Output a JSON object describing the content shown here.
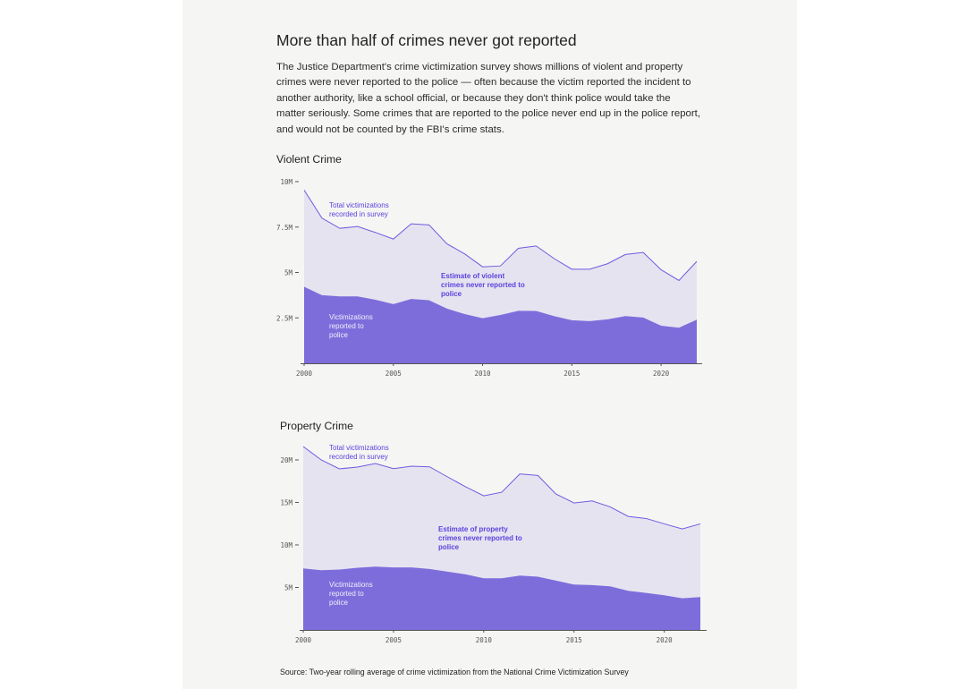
{
  "title": "More than half of crimes never got reported",
  "description": "The Justice Department's crime victimization survey shows millions of violent and property crimes were never reported to the police — often because the victim reported the incident to another authority, like a school official, or because they don't think police would take the matter seriously. Some crimes that are reported to the police never end up in the police report, and would not be counted by the FBI's crime stats.",
  "source": "Source: Two-year rolling average of crime victimization from the National Crime Victimization Survey",
  "colors": {
    "reported": "#7d6ddb",
    "unreported": "#e6e3f0",
    "total_line": "#6d5ce0",
    "label": "#5a43de"
  },
  "chart_data": [
    {
      "type": "area",
      "title": "Violent Crime",
      "x": [
        2000,
        2001,
        2002,
        2003,
        2004,
        2005,
        2006,
        2007,
        2008,
        2009,
        2010,
        2011,
        2012,
        2013,
        2014,
        2015,
        2016,
        2017,
        2018,
        2019,
        2020,
        2021,
        2022
      ],
      "series": [
        {
          "name": "Total victimizations recorded in survey",
          "values": [
            9.54,
            7.99,
            7.43,
            7.53,
            7.2,
            6.84,
            7.68,
            7.62,
            6.58,
            6.02,
            5.31,
            5.36,
            6.33,
            6.46,
            5.77,
            5.18,
            5.18,
            5.48,
            5.99,
            6.1,
            5.15,
            4.56,
            5.61
          ]
        },
        {
          "name": "Victimizations reported to police",
          "values": [
            4.21,
            3.75,
            3.68,
            3.68,
            3.5,
            3.26,
            3.54,
            3.47,
            3.01,
            2.71,
            2.48,
            2.66,
            2.89,
            2.88,
            2.6,
            2.37,
            2.32,
            2.42,
            2.6,
            2.52,
            2.07,
            1.96,
            2.4
          ]
        }
      ],
      "gap_label": "Estimate of violent crimes never reported to police",
      "ylim": [
        0,
        10
      ],
      "yticks": [
        2.5,
        5,
        7.5,
        10
      ],
      "ytick_labels": [
        "2.5M",
        "5M",
        "7.5M",
        "10M"
      ],
      "xticks": [
        2000,
        2005,
        2010,
        2015,
        2020
      ],
      "xtick_labels": [
        "2000",
        "2005",
        "2010",
        "2015",
        "2020"
      ],
      "unit": "millions"
    },
    {
      "type": "area",
      "title": "Property Crime",
      "x": [
        2000,
        2001,
        2002,
        2003,
        2004,
        2005,
        2006,
        2007,
        2008,
        2009,
        2010,
        2011,
        2012,
        2013,
        2014,
        2015,
        2016,
        2017,
        2018,
        2019,
        2020,
        2021,
        2022
      ],
      "series": [
        {
          "name": "Total victimizations recorded in survey",
          "values": [
            21.58,
            20.0,
            18.95,
            19.16,
            19.58,
            18.98,
            19.26,
            19.19,
            18.0,
            16.84,
            15.78,
            16.2,
            18.35,
            18.17,
            15.99,
            14.94,
            15.18,
            14.48,
            13.36,
            13.11,
            12.48,
            11.88,
            12.48
          ]
        },
        {
          "name": "Victimizations reported to police",
          "values": [
            7.24,
            7.03,
            7.1,
            7.31,
            7.45,
            7.35,
            7.35,
            7.17,
            6.85,
            6.54,
            6.08,
            6.08,
            6.4,
            6.26,
            5.8,
            5.34,
            5.27,
            5.13,
            4.6,
            4.36,
            4.08,
            3.73,
            3.87
          ]
        }
      ],
      "gap_label": "Estimate of property crimes never reported to police",
      "ylim": [
        0,
        20
      ],
      "yticks": [
        5,
        10,
        15,
        20
      ],
      "ytick_labels": [
        "5M",
        "10M",
        "15M",
        "20M"
      ],
      "xticks": [
        2000,
        2005,
        2010,
        2015,
        2020
      ],
      "xtick_labels": [
        "2000",
        "2005",
        "2010",
        "2015",
        "2020"
      ],
      "unit": "millions"
    }
  ]
}
